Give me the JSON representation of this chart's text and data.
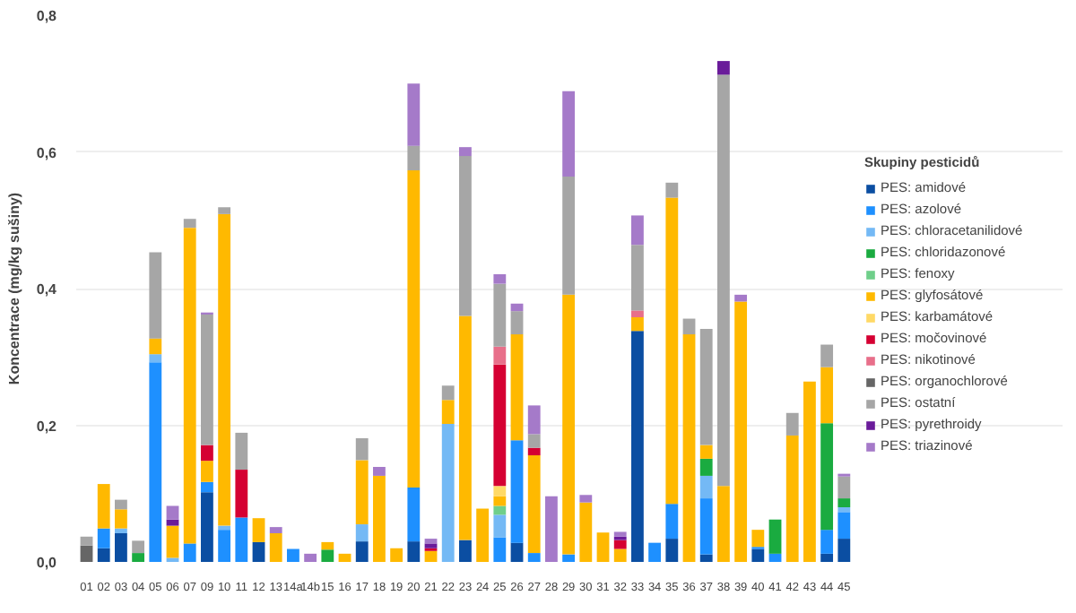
{
  "chart_data": {
    "type": "bar",
    "stacked": true,
    "ylabel": "Koncentrace (mg/kg sušiny)",
    "legend_title": "Skupiny pesticidů",
    "legend": "right",
    "grid": "y",
    "categories": [
      "01",
      "02",
      "03",
      "04",
      "05",
      "06",
      "07",
      "09",
      "10",
      "11",
      "12",
      "13",
      "14a",
      "14b",
      "15",
      "16",
      "17",
      "18",
      "19",
      "20",
      "21",
      "22",
      "23",
      "24",
      "25",
      "26",
      "27",
      "28",
      "29",
      "30",
      "31",
      "32",
      "33",
      "34",
      "35",
      "36",
      "37",
      "38",
      "39",
      "40",
      "41",
      "42",
      "43",
      "44",
      "45"
    ],
    "ylim": [
      0,
      0.8
    ],
    "yticks": [
      {
        "value": 0,
        "label": "0,0"
      },
      {
        "value": 0.2,
        "label": "0,2"
      },
      {
        "value": 0.4,
        "label": "0,4"
      },
      {
        "value": 0.6,
        "label": "0,6"
      },
      {
        "value": 0.8,
        "label": "0,8"
      }
    ],
    "series": [
      {
        "name": "PES: amidové",
        "color": "#0b4ea2",
        "values": [
          null,
          0.02,
          0.042,
          null,
          null,
          null,
          null,
          0.102,
          null,
          null,
          0.029,
          null,
          null,
          null,
          null,
          null,
          0.03,
          null,
          null,
          0.03,
          null,
          null,
          0.032,
          null,
          null,
          0.028,
          null,
          null,
          null,
          null,
          null,
          null,
          0.338,
          null,
          0.034,
          null,
          0.011,
          null,
          null,
          0.019,
          null,
          null,
          null,
          0.012,
          0.034
        ]
      },
      {
        "name": "PES: azolové",
        "color": "#1e90ff",
        "values": [
          null,
          0.029,
          null,
          null,
          0.292,
          null,
          0.027,
          0.015,
          0.047,
          0.065,
          null,
          null,
          0.019,
          null,
          null,
          null,
          null,
          null,
          null,
          0.079,
          null,
          null,
          null,
          null,
          0.036,
          0.15,
          0.013,
          null,
          0.011,
          null,
          null,
          null,
          null,
          0.028,
          0.051,
          null,
          0.082,
          null,
          null,
          0.003,
          0.012,
          null,
          null,
          0.035,
          0.039
        ]
      },
      {
        "name": "PES: chloracetanilidové",
        "color": "#74b9f5",
        "values": [
          null,
          null,
          0.007,
          null,
          0.012,
          0.006,
          null,
          null,
          0.006,
          null,
          null,
          null,
          null,
          null,
          null,
          null,
          0.025,
          null,
          null,
          null,
          null,
          0.202,
          null,
          null,
          0.033,
          null,
          null,
          null,
          null,
          null,
          null,
          null,
          null,
          null,
          null,
          null,
          0.033,
          null,
          null,
          null,
          null,
          null,
          null,
          null,
          0.007
        ]
      },
      {
        "name": "PES: chloridazonové",
        "color": "#1aab40",
        "values": [
          null,
          null,
          null,
          0.013,
          null,
          null,
          null,
          null,
          null,
          null,
          null,
          null,
          null,
          null,
          0.018,
          null,
          null,
          null,
          null,
          null,
          null,
          null,
          null,
          null,
          null,
          null,
          null,
          null,
          null,
          null,
          null,
          null,
          null,
          null,
          null,
          null,
          0.025,
          null,
          null,
          null,
          0.05,
          null,
          null,
          0.156,
          0.013
        ]
      },
      {
        "name": "PES: fenoxy",
        "color": "#6fcf8a",
        "values": [
          null,
          null,
          null,
          null,
          null,
          null,
          null,
          null,
          null,
          null,
          null,
          null,
          null,
          null,
          null,
          null,
          null,
          null,
          null,
          null,
          null,
          null,
          null,
          null,
          0.013,
          null,
          null,
          null,
          null,
          null,
          null,
          null,
          null,
          null,
          null,
          null,
          null,
          null,
          null,
          null,
          null,
          null,
          null,
          null,
          null
        ]
      },
      {
        "name": "PES: glyfosátové",
        "color": "#ffb900",
        "values": [
          null,
          0.065,
          0.028,
          null,
          0.023,
          0.047,
          0.462,
          0.031,
          0.456,
          null,
          0.035,
          0.042,
          null,
          null,
          0.011,
          0.012,
          0.094,
          0.126,
          0.02,
          0.464,
          0.016,
          0.035,
          0.328,
          0.078,
          0.014,
          0.155,
          0.143,
          null,
          0.38,
          0.087,
          0.043,
          0.019,
          0.02,
          null,
          0.448,
          0.333,
          0.02,
          0.111,
          0.381,
          0.025,
          null,
          0.185,
          0.264,
          0.082,
          null
        ]
      },
      {
        "name": "PES: karbamátové",
        "color": "#ffd966",
        "values": [
          null,
          null,
          null,
          null,
          null,
          null,
          null,
          null,
          null,
          null,
          null,
          null,
          null,
          null,
          null,
          null,
          null,
          null,
          null,
          null,
          null,
          null,
          null,
          null,
          0.015,
          null,
          null,
          null,
          null,
          null,
          null,
          null,
          null,
          null,
          null,
          null,
          null,
          null,
          null,
          null,
          null,
          null,
          null,
          null,
          null
        ]
      },
      {
        "name": "PES: močovinové",
        "color": "#d50032",
        "values": [
          null,
          null,
          null,
          null,
          null,
          null,
          null,
          0.023,
          null,
          0.07,
          null,
          null,
          null,
          null,
          null,
          null,
          null,
          null,
          null,
          null,
          0.004,
          null,
          null,
          null,
          0.178,
          null,
          0.011,
          null,
          null,
          null,
          null,
          0.013,
          null,
          null,
          null,
          null,
          null,
          null,
          null,
          null,
          null,
          null,
          null,
          null,
          null
        ]
      },
      {
        "name": "PES: nikotinové",
        "color": "#e86f8a",
        "values": [
          null,
          null,
          null,
          null,
          null,
          null,
          null,
          null,
          null,
          null,
          null,
          null,
          null,
          null,
          null,
          null,
          null,
          null,
          null,
          null,
          null,
          null,
          null,
          null,
          0.026,
          null,
          null,
          null,
          null,
          null,
          null,
          null,
          0.01,
          null,
          null,
          null,
          null,
          null,
          null,
          null,
          null,
          null,
          null,
          null,
          null
        ]
      },
      {
        "name": "PES: organochlorové",
        "color": "#666666",
        "values": [
          0.024,
          null,
          null,
          null,
          null,
          null,
          null,
          null,
          null,
          null,
          null,
          null,
          null,
          null,
          null,
          null,
          null,
          null,
          null,
          null,
          null,
          null,
          null,
          null,
          null,
          null,
          null,
          null,
          null,
          null,
          null,
          null,
          null,
          null,
          null,
          null,
          null,
          null,
          null,
          null,
          null,
          null,
          null,
          null,
          null
        ]
      },
      {
        "name": "PES: ostatní",
        "color": "#a6a6a6",
        "values": [
          0.013,
          null,
          0.014,
          0.018,
          0.126,
          null,
          0.013,
          0.191,
          0.01,
          0.054,
          null,
          null,
          null,
          null,
          null,
          null,
          0.032,
          null,
          null,
          0.036,
          null,
          0.021,
          0.234,
          null,
          0.092,
          0.034,
          0.02,
          null,
          0.173,
          null,
          null,
          null,
          0.096,
          null,
          0.022,
          0.023,
          0.17,
          0.602,
          null,
          null,
          null,
          0.033,
          null,
          0.033,
          0.032
        ]
      },
      {
        "name": "PES: pyrethroidy",
        "color": "#6a1b9a",
        "values": [
          null,
          null,
          null,
          null,
          null,
          0.009,
          null,
          null,
          null,
          null,
          null,
          null,
          null,
          null,
          null,
          null,
          null,
          null,
          null,
          null,
          0.007,
          null,
          null,
          null,
          null,
          null,
          null,
          null,
          null,
          null,
          null,
          0.005,
          null,
          null,
          null,
          null,
          null,
          0.02,
          null,
          null,
          null,
          null,
          null,
          null,
          null
        ]
      },
      {
        "name": "PES: triazinové",
        "color": "#a57ac9",
        "values": [
          null,
          null,
          null,
          null,
          null,
          0.02,
          null,
          0.003,
          null,
          null,
          null,
          0.009,
          null,
          0.012,
          null,
          null,
          null,
          0.013,
          null,
          0.091,
          0.007,
          null,
          0.013,
          null,
          0.014,
          0.011,
          0.042,
          0.096,
          0.125,
          0.011,
          null,
          0.007,
          0.043,
          null,
          null,
          null,
          null,
          null,
          0.01,
          null,
          null,
          null,
          null,
          null,
          0.004
        ]
      }
    ]
  }
}
